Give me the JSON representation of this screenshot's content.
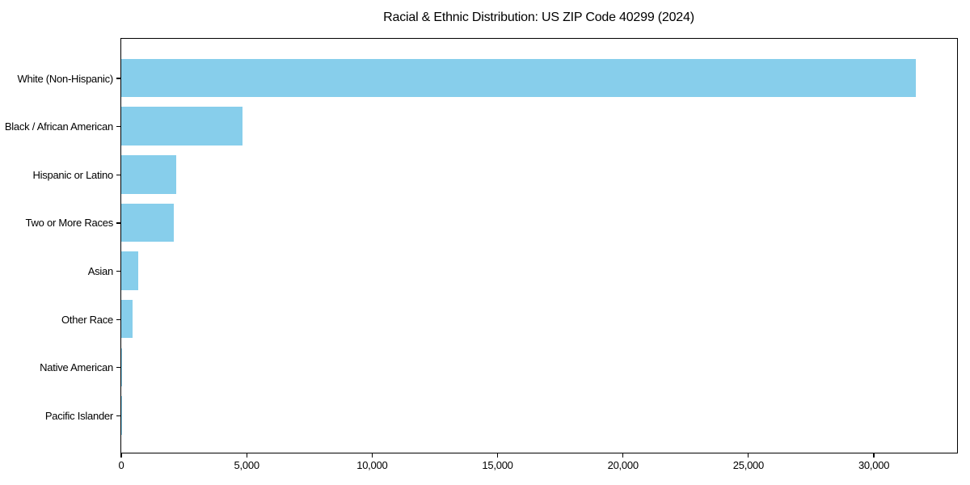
{
  "chart_data": {
    "type": "bar",
    "orientation": "horizontal",
    "title": "Racial & Ethnic Distribution: US ZIP Code 40299 (2024)",
    "categories": [
      "White (Non-Hispanic)",
      "Black / African American",
      "Hispanic or Latino",
      "Two or More Races",
      "Asian",
      "Other Race",
      "Native American",
      "Pacific Islander"
    ],
    "values": [
      31700,
      4850,
      2200,
      2100,
      700,
      460,
      60,
      15
    ],
    "xlabel": "",
    "ylabel": "",
    "xlim": [
      0,
      33300
    ],
    "xticks": [
      0,
      5000,
      10000,
      15000,
      20000,
      25000,
      30000
    ],
    "xtick_labels": [
      "0",
      "5,000",
      "10,000",
      "15,000",
      "20,000",
      "25,000",
      "30,000"
    ],
    "bar_color": "#87CEEB",
    "axis_color": "#000000",
    "text_color": "#000000",
    "background_color": "#FFFFFF",
    "grid": false,
    "legend": "none"
  }
}
